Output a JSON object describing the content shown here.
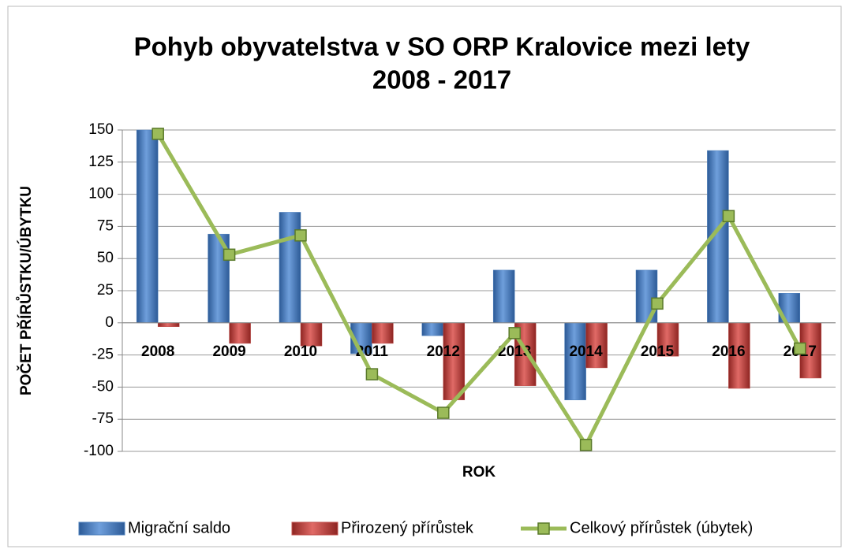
{
  "chart_data": {
    "type": "bar_line",
    "title": [
      "Pohyb obyvatelstva v SO ORP Kralovice mezi lety",
      "2008 - 2017"
    ],
    "x_label": "ROK",
    "y_label": "POČET PŘÍRŮSTKU/ÚBYTKU",
    "categories": [
      "2008",
      "2009",
      "2010",
      "2011",
      "2012",
      "2013",
      "2014",
      "2015",
      "2016",
      "2017"
    ],
    "series": [
      {
        "name": "Migrační saldo",
        "color": "#4f81bd",
        "type": "bar",
        "values": [
          150,
          69,
          86,
          -24,
          -10,
          41,
          -60,
          41,
          134,
          23
        ]
      },
      {
        "name": "Přirozený přírůstek",
        "color": "#c0504d",
        "type": "bar",
        "values": [
          -3,
          -16,
          -18,
          -16,
          -60,
          -49,
          -35,
          -26,
          -51,
          -43
        ]
      },
      {
        "name": "Celkový přírůstek (úbytek)",
        "color": "#9bbb59",
        "type": "line",
        "values": [
          147,
          53,
          68,
          -40,
          -70,
          -8,
          -95,
          15,
          83,
          -20
        ]
      }
    ],
    "ylim": [
      -100,
      150
    ],
    "yticks": [
      -100,
      -75,
      -50,
      -25,
      0,
      25,
      50,
      75,
      100,
      125,
      150
    ],
    "grid": true,
    "legend": "bottom"
  }
}
